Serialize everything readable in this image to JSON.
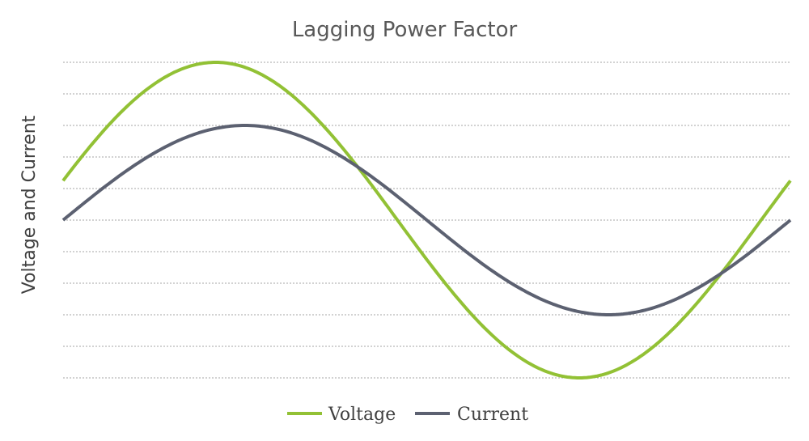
{
  "chart_data": {
    "type": "line",
    "title": "Lagging Power Factor",
    "xlabel": "",
    "ylabel": "Voltage and Current",
    "xlim": [
      0,
      1
    ],
    "ylim": [
      -1,
      1
    ],
    "grid": true,
    "legend_position": "bottom",
    "series": [
      {
        "name": "Voltage",
        "color": "#92c135",
        "amplitude": 1.0,
        "phase_deg": 0,
        "offset_at_start": 0.25
      },
      {
        "name": "Current",
        "color": "#5c6171",
        "amplitude": 0.6,
        "phase_deg": -30,
        "offset_at_start": 0
      }
    ]
  }
}
